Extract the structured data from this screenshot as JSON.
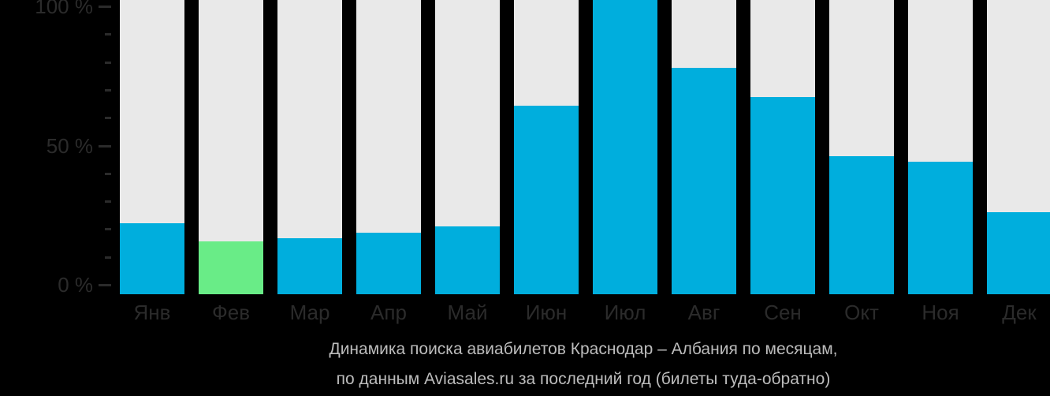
{
  "chart_data": {
    "type": "bar",
    "title": "Динамика поиска авиабилетов Краснодар – Албания по месяцам, по данным Aviasales.ru за последний год (билеты туда-обратно)",
    "categories": [
      "Янв",
      "Фев",
      "Мар",
      "Апр",
      "Май",
      "Июн",
      "Июл",
      "Авг",
      "Сен",
      "Окт",
      "Ноя",
      "Дек"
    ],
    "values": [
      24,
      18,
      19,
      21,
      23,
      64,
      100,
      77,
      67,
      47,
      45,
      28
    ],
    "unit": "%",
    "xlabel": "",
    "ylabel": "",
    "ylim": [
      0,
      100
    ],
    "y_major_ticks": [
      0,
      50,
      100
    ],
    "y_major_tick_labels": [
      "0 %",
      "50 %",
      "100 %"
    ],
    "y_minor_step": 10,
    "grid": false,
    "legend": false,
    "highlight_index": 1,
    "highlight_category": "Фев"
  },
  "colors": {
    "background": "#000000",
    "bar": "#00aedd",
    "bar_highlight": "#69ec87",
    "bar_track": "#e9e9e9",
    "axis_text": "#2b2b2b",
    "tick": "#2b2b2b",
    "caption_text": "#bcbcbc"
  },
  "caption": {
    "line1": "Динамика поиска авиабилетов Краснодар – Албания по месяцам,",
    "line2": "по данным Aviasales.ru за последний год (билеты туда-обратно)"
  }
}
